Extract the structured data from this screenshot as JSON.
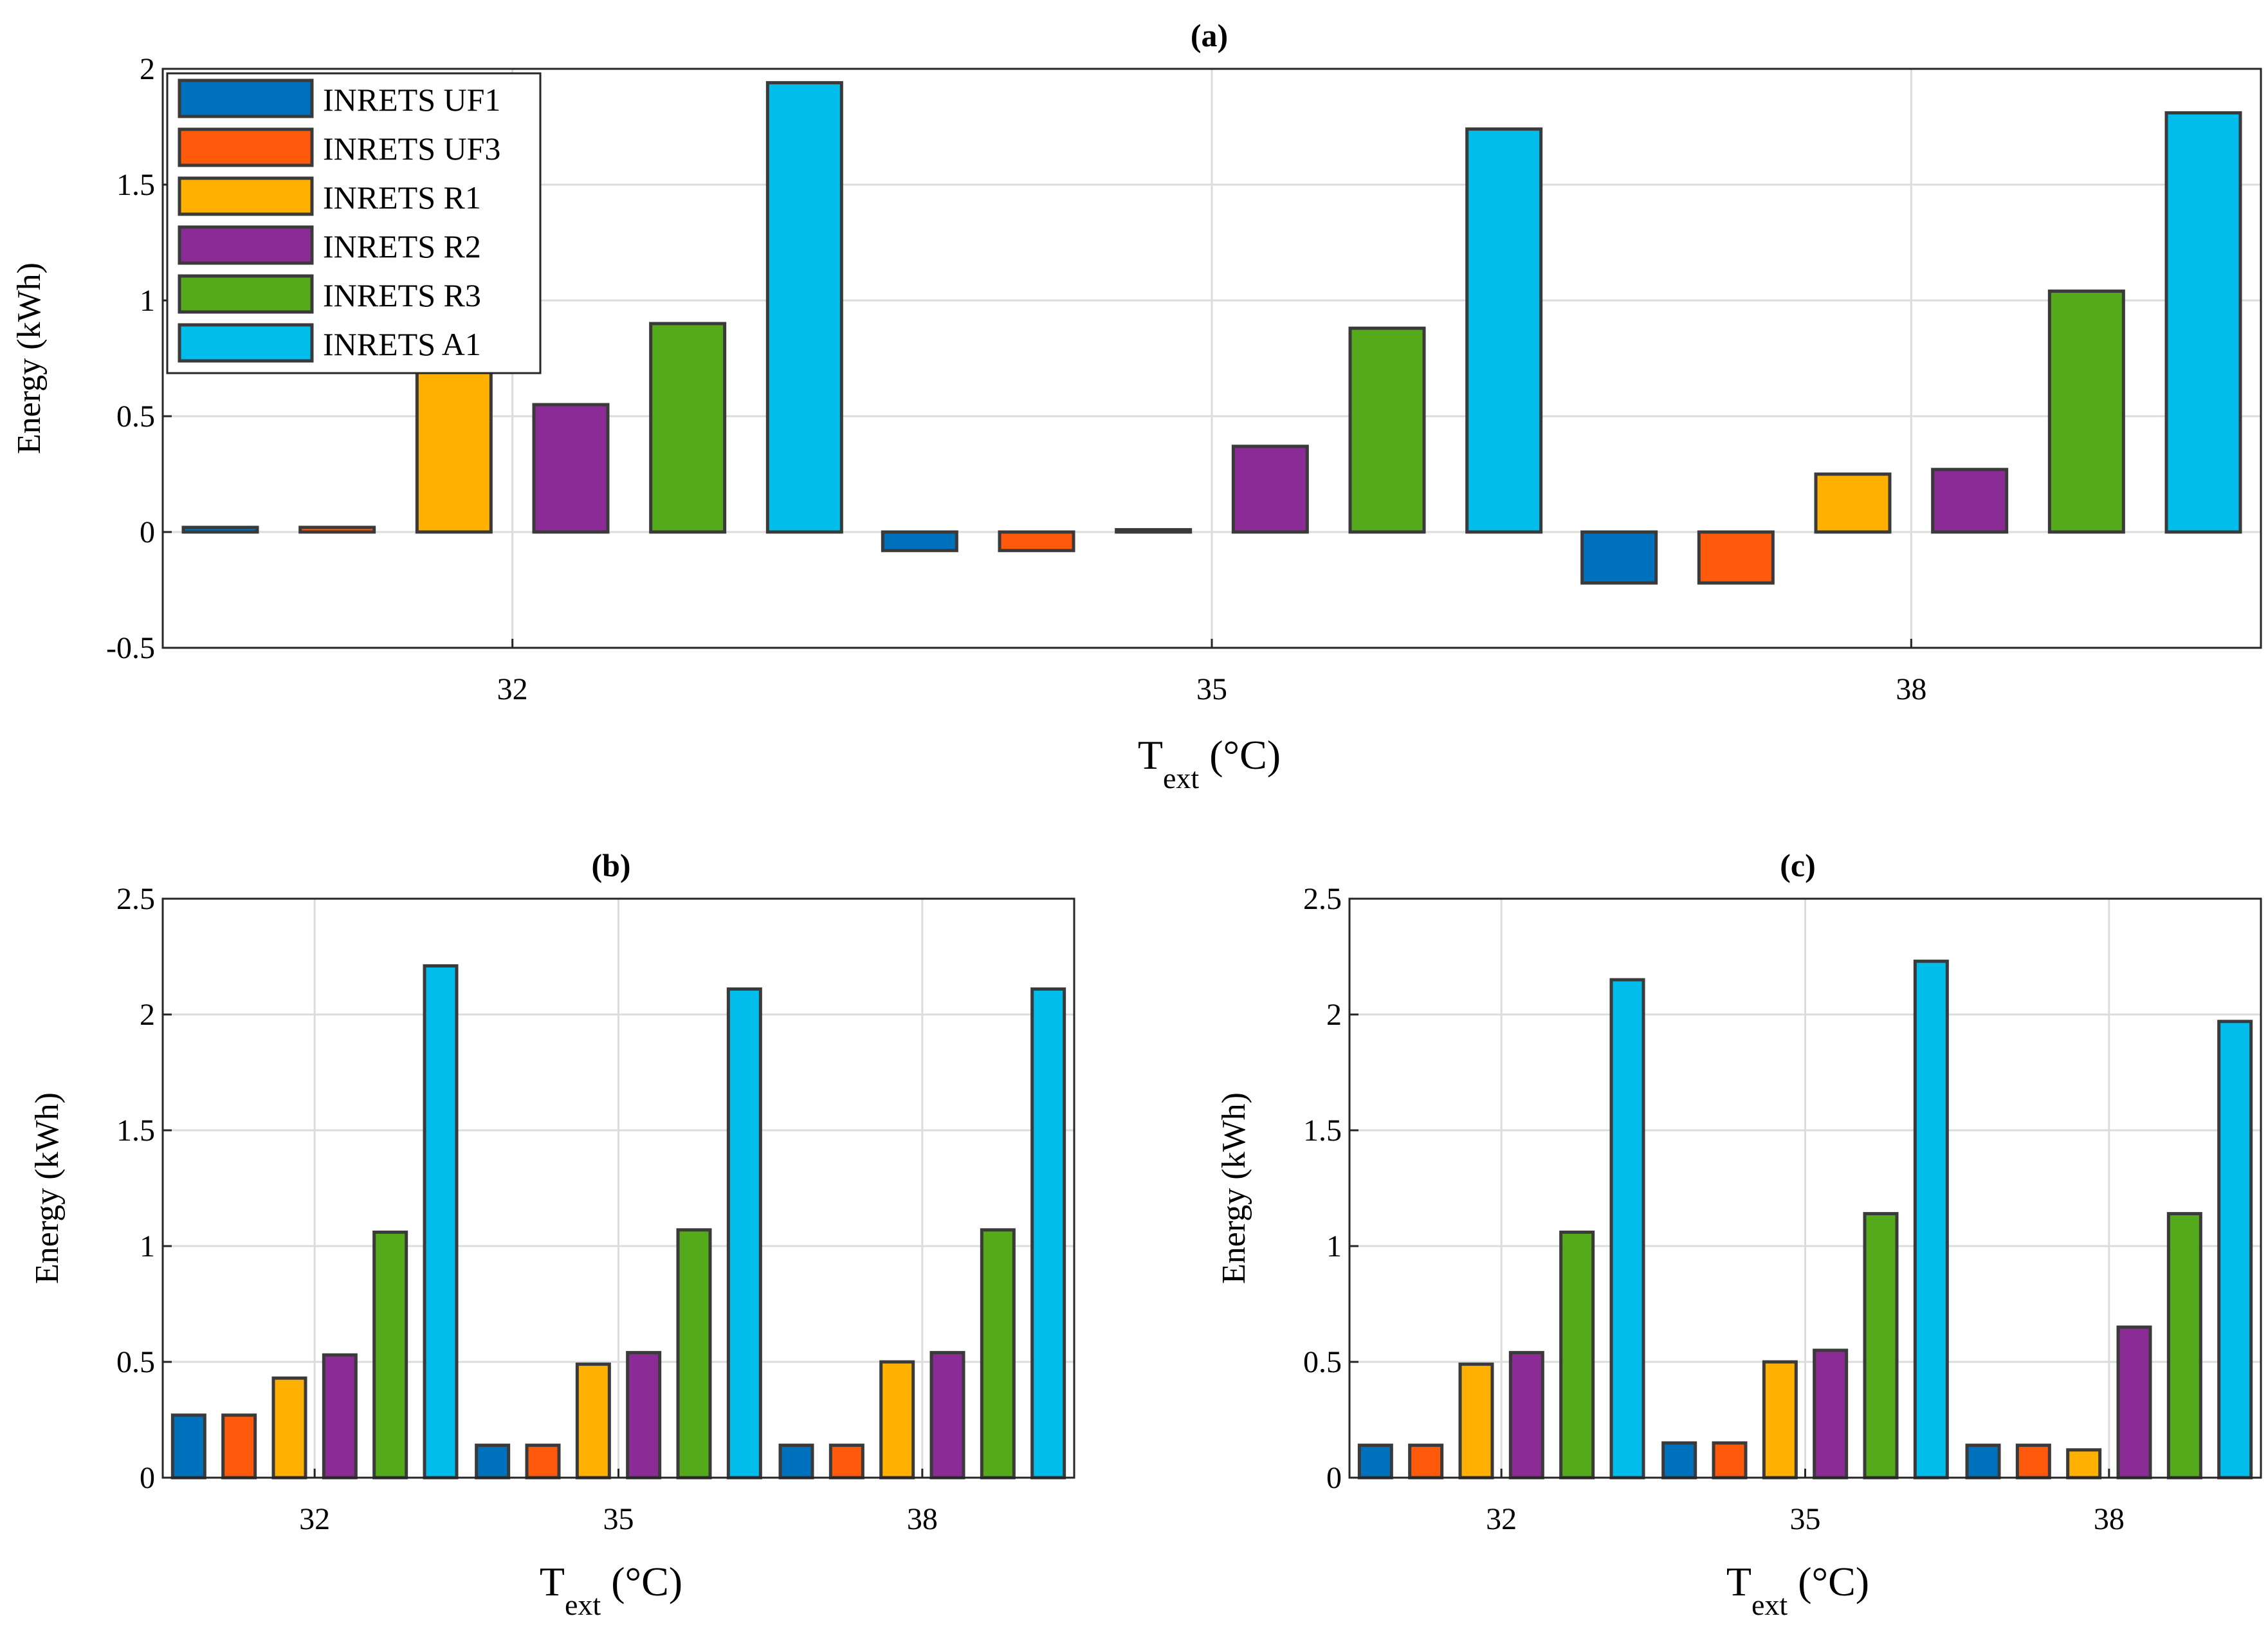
{
  "series_style": [
    {
      "name": "INRETS UF1",
      "color": "#0072bd"
    },
    {
      "name": "INRETS UF3",
      "color": "#ff5a0c"
    },
    {
      "name": "INRETS R1",
      "color": "#ffb000"
    },
    {
      "name": "INRETS R2",
      "color": "#8b2b96"
    },
    {
      "name": "INRETS R3",
      "color": "#55aa1c"
    },
    {
      "name": "INRETS A1",
      "color": "#00bdec"
    }
  ],
  "chart_data": [
    {
      "type": "bar",
      "title": "(a)",
      "xlabel_main": "T",
      "xlabel_sub": "ext",
      "xlabel_unit": " (°C)",
      "ylabel": "Energy (kWh)",
      "ylim": [
        -0.5,
        2
      ],
      "yticks": [
        "2",
        "1.5",
        "1",
        "0.5",
        "0",
        "-0.5"
      ],
      "categories": [
        "32",
        "35",
        "38"
      ],
      "legend": "top-left",
      "grid": true,
      "series": [
        {
          "name": "INRETS UF1",
          "values": [
            0.02,
            -0.08,
            -0.22
          ]
        },
        {
          "name": "INRETS UF3",
          "values": [
            0.02,
            -0.08,
            -0.22
          ]
        },
        {
          "name": "INRETS R1",
          "values": [
            0.7,
            0.01,
            0.25
          ]
        },
        {
          "name": "INRETS R2",
          "values": [
            0.55,
            0.37,
            0.27
          ]
        },
        {
          "name": "INRETS R3",
          "values": [
            0.9,
            0.88,
            1.04
          ]
        },
        {
          "name": "INRETS A1",
          "values": [
            1.94,
            1.74,
            1.81
          ]
        }
      ]
    },
    {
      "type": "bar",
      "title": "(b)",
      "xlabel_main": "T",
      "xlabel_sub": "ext",
      "xlabel_unit": " (°C)",
      "ylabel": "Energy (kWh)",
      "ylim": [
        0,
        2.5
      ],
      "yticks": [
        "2.5",
        "2",
        "1.5",
        "1",
        "0.5",
        "0"
      ],
      "categories": [
        "32",
        "35",
        "38"
      ],
      "grid": true,
      "series": [
        {
          "name": "INRETS UF1",
          "values": [
            0.27,
            0.14,
            0.14
          ]
        },
        {
          "name": "INRETS UF3",
          "values": [
            0.27,
            0.14,
            0.14
          ]
        },
        {
          "name": "INRETS R1",
          "values": [
            0.43,
            0.49,
            0.5
          ]
        },
        {
          "name": "INRETS R2",
          "values": [
            0.53,
            0.54,
            0.54
          ]
        },
        {
          "name": "INRETS R3",
          "values": [
            1.06,
            1.07,
            1.07
          ]
        },
        {
          "name": "INRETS A1",
          "values": [
            2.21,
            2.11,
            2.11
          ]
        }
      ]
    },
    {
      "type": "bar",
      "title": "(c)",
      "xlabel_main": "T",
      "xlabel_sub": "ext",
      "xlabel_unit": " (°C)",
      "ylabel": "Energy (kWh)",
      "ylim": [
        0,
        2.5
      ],
      "yticks": [
        "2.5",
        "2",
        "1.5",
        "1",
        "0.5",
        "0"
      ],
      "categories": [
        "32",
        "35",
        "38"
      ],
      "grid": true,
      "series": [
        {
          "name": "INRETS UF1",
          "values": [
            0.14,
            0.15,
            0.14
          ]
        },
        {
          "name": "INRETS UF3",
          "values": [
            0.14,
            0.15,
            0.14
          ]
        },
        {
          "name": "INRETS R1",
          "values": [
            0.49,
            0.5,
            0.12
          ]
        },
        {
          "name": "INRETS R2",
          "values": [
            0.54,
            0.55,
            0.65
          ]
        },
        {
          "name": "INRETS R3",
          "values": [
            1.06,
            1.14,
            1.14
          ]
        },
        {
          "name": "INRETS A1",
          "values": [
            2.15,
            2.23,
            1.97
          ]
        }
      ]
    }
  ]
}
